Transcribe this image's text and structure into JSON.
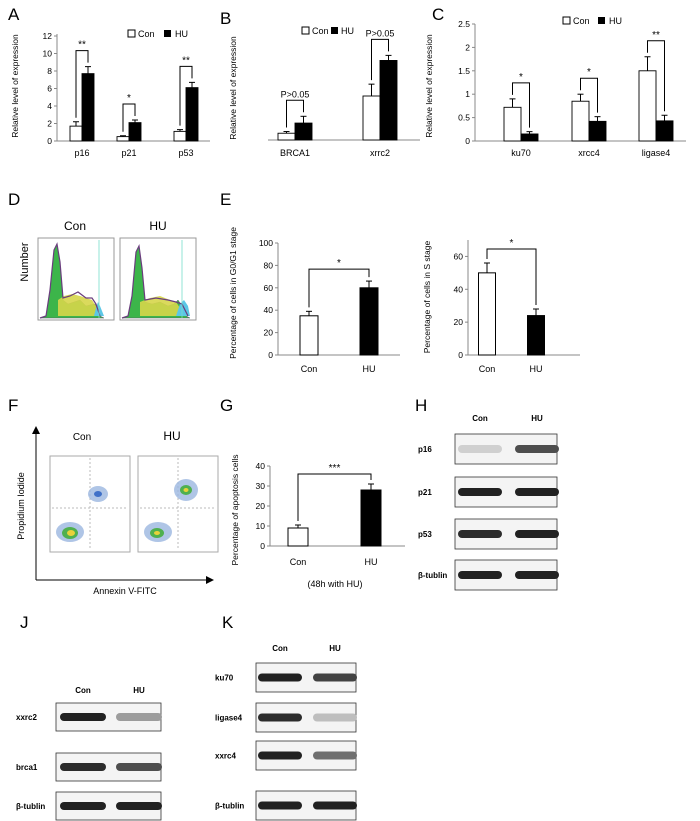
{
  "panels": {
    "A": {
      "letter": "A",
      "ylabel": "Relative level of expression",
      "legend": {
        "con": "Con",
        "hu": "HU"
      },
      "ylim": [
        0,
        12
      ],
      "ticks": [
        "0",
        "2",
        "4",
        "6",
        "8",
        "10",
        "12"
      ],
      "categories": [
        "p16",
        "p21",
        "p53"
      ],
      "series": [
        {
          "name": "Con",
          "values": [
            1.7,
            0.5,
            1.1
          ],
          "err": [
            0.5,
            0.1,
            0.2
          ]
        },
        {
          "name": "HU",
          "values": [
            7.7,
            2.1,
            6.1
          ],
          "err": [
            0.8,
            0.3,
            0.6
          ]
        }
      ],
      "sig": [
        "**",
        "*",
        "**"
      ]
    },
    "B": {
      "letter": "B",
      "ylabel": "Relative level of expression",
      "legend": {
        "con": "Con",
        "hu": "HU"
      },
      "categories": [
        "BRCA1",
        "xrrc2"
      ],
      "series": [
        {
          "name": "Con",
          "values": [
            0.2,
            1.3
          ],
          "err": [
            0.05,
            0.35
          ]
        },
        {
          "name": "HU",
          "values": [
            0.5,
            2.35
          ],
          "err": [
            0.2,
            0.15
          ]
        }
      ],
      "sig": [
        "P>0.05",
        "P>0.05"
      ]
    },
    "C": {
      "letter": "C",
      "ylabel": "Relative level of expression",
      "legend": {
        "con": "Con",
        "hu": "HU"
      },
      "ylim": [
        0,
        2.5
      ],
      "ticks": [
        "0",
        "0.5",
        "1",
        "1.5",
        "2",
        "2.5"
      ],
      "categories": [
        "ku70",
        "xrcc4",
        "ligase4"
      ],
      "series": [
        {
          "name": "Con",
          "values": [
            0.72,
            0.85,
            1.5
          ],
          "err": [
            0.18,
            0.15,
            0.3
          ]
        },
        {
          "name": "HU",
          "values": [
            0.15,
            0.42,
            0.43
          ],
          "err": [
            0.05,
            0.1,
            0.12
          ]
        }
      ],
      "sig": [
        "*",
        "*",
        "**"
      ]
    },
    "D": {
      "letter": "D",
      "ylabel": "Number",
      "samples": [
        "Con",
        "HU"
      ]
    },
    "E": {
      "letter": "E",
      "left": {
        "ylabel": "Percentage of cells in G0/G1 stage",
        "ylim": [
          0,
          100
        ],
        "ticks": [
          "0",
          "20",
          "40",
          "60",
          "80",
          "100"
        ],
        "categories": [
          "Con",
          "HU"
        ],
        "values": [
          35,
          60
        ],
        "err": [
          4,
          6
        ],
        "sig": "*"
      },
      "right": {
        "ylabel": "Percentage of cells in S stage",
        "ylim": [
          0,
          70
        ],
        "ticks": [
          "0",
          "20",
          "40",
          "60"
        ],
        "categories": [
          "Con",
          "HU"
        ],
        "values": [
          50,
          24
        ],
        "err": [
          6,
          4
        ],
        "sig": "*"
      }
    },
    "F": {
      "letter": "F",
      "ylabel": "Propidium Iodide",
      "xlabel": "Annexin V-FITC",
      "samples": [
        "Con",
        "HU"
      ]
    },
    "G": {
      "letter": "G",
      "ylabel": "Percentage of apoptosis cells",
      "xnote": "(48h with HU)",
      "ylim": [
        0,
        40
      ],
      "ticks": [
        "0",
        "10",
        "20",
        "30",
        "40"
      ],
      "categories": [
        "Con",
        "HU"
      ],
      "values": [
        9,
        28
      ],
      "err": [
        1.5,
        3
      ],
      "sig": "***"
    },
    "H": {
      "letter": "H",
      "lanes": [
        "Con",
        "HU"
      ],
      "rows": [
        {
          "label": "p16",
          "intensity": [
            0.12,
            0.7
          ]
        },
        {
          "label": "p21",
          "intensity": [
            0.9,
            0.9
          ]
        },
        {
          "label": "p53",
          "intensity": [
            0.85,
            0.9
          ]
        },
        {
          "label": "β-tublin",
          "intensity": [
            0.9,
            0.9
          ]
        }
      ]
    },
    "J": {
      "letter": "J",
      "lanes": [
        "Con",
        "HU"
      ],
      "rows": [
        {
          "label": "xxrc2",
          "intensity": [
            0.9,
            0.35
          ]
        },
        {
          "label": "brca1",
          "intensity": [
            0.85,
            0.7
          ]
        },
        {
          "label": "β-tublin",
          "intensity": [
            0.9,
            0.9
          ]
        }
      ]
    },
    "K": {
      "letter": "K",
      "lanes": [
        "Con",
        "HU"
      ],
      "rows": [
        {
          "label": "ku70",
          "intensity": [
            0.9,
            0.75
          ]
        },
        {
          "label": "ligase4",
          "intensity": [
            0.85,
            0.2
          ]
        },
        {
          "label": "xxrc4",
          "intensity": [
            0.9,
            0.55
          ]
        },
        {
          "label": "β-tublin",
          "intensity": [
            0.9,
            0.9
          ]
        }
      ]
    }
  },
  "chart_data": [
    {
      "type": "bar",
      "categories": [
        "p16",
        "p21",
        "p53"
      ],
      "ylabel": "Relative level of expression",
      "ylim": [
        0,
        12
      ],
      "series": [
        {
          "name": "Con",
          "values": [
            1.7,
            0.5,
            1.1
          ]
        },
        {
          "name": "HU",
          "values": [
            7.7,
            2.1,
            6.1
          ]
        }
      ]
    },
    {
      "type": "bar",
      "categories": [
        "BRCA1",
        "xrrc2"
      ],
      "ylabel": "Relative level of expression",
      "series": [
        {
          "name": "Con",
          "values": [
            0.2,
            1.3
          ]
        },
        {
          "name": "HU",
          "values": [
            0.5,
            2.35
          ]
        }
      ]
    },
    {
      "type": "bar",
      "categories": [
        "ku70",
        "xrcc4",
        "ligase4"
      ],
      "ylabel": "Relative level of expression",
      "ylim": [
        0,
        2.5
      ],
      "series": [
        {
          "name": "Con",
          "values": [
            0.72,
            0.85,
            1.5
          ]
        },
        {
          "name": "HU",
          "values": [
            0.15,
            0.42,
            0.43
          ]
        }
      ]
    },
    {
      "type": "bar",
      "categories": [
        "Con",
        "HU"
      ],
      "ylabel": "Percentage of cells in G0/G1 stage",
      "ylim": [
        0,
        100
      ],
      "values": [
        35,
        60
      ]
    },
    {
      "type": "bar",
      "categories": [
        "Con",
        "HU"
      ],
      "ylabel": "Percentage of cells in S stage",
      "ylim": [
        0,
        70
      ],
      "values": [
        50,
        24
      ]
    },
    {
      "type": "bar",
      "categories": [
        "Con",
        "HU"
      ],
      "ylabel": "Percentage of apoptosis cells",
      "xlabel": "(48h with HU)",
      "ylim": [
        0,
        40
      ],
      "values": [
        9,
        28
      ]
    }
  ]
}
